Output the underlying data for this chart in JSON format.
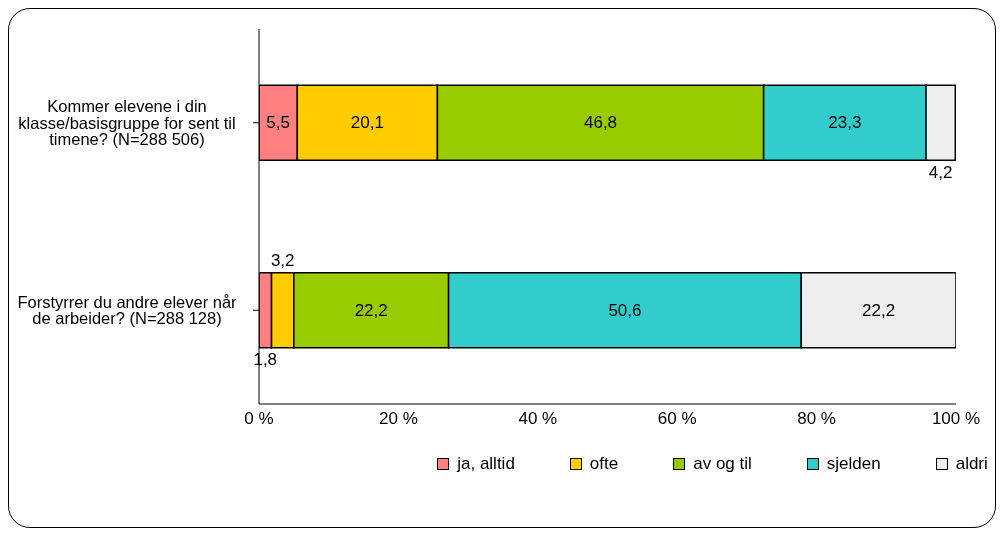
{
  "chart_data": {
    "type": "bar",
    "orientation": "horizontal",
    "stacked": true,
    "categories": [
      "Kommer elevene i din klasse/basisgruppe for sent til timene? (N=288 506)",
      "Forstyrrer du andre elever når de arbeider? (N=288 128)"
    ],
    "series": [
      {
        "name": "ja, alltid",
        "color": "#ff8080",
        "values": [
          5.5,
          1.8
        ],
        "value_labels": [
          "5,5",
          "1,8"
        ]
      },
      {
        "name": "ofte",
        "color": "#ffcc00",
        "values": [
          20.1,
          3.2
        ],
        "value_labels": [
          "20,1",
          "3,2"
        ]
      },
      {
        "name": "av og til",
        "color": "#99cc00",
        "values": [
          46.8,
          22.2
        ],
        "value_labels": [
          "46,8",
          "22,2"
        ]
      },
      {
        "name": "sjelden",
        "color": "#33cccc",
        "values": [
          23.3,
          50.6
        ],
        "value_labels": [
          "23,3",
          "50,6"
        ]
      },
      {
        "name": "aldri",
        "color": "#eeeeee",
        "values": [
          4.2,
          22.2
        ],
        "value_labels": [
          "4,2",
          "22,2"
        ]
      }
    ],
    "xlim": [
      0,
      100
    ],
    "xticks": [
      {
        "value": 0,
        "label": "0 %"
      },
      {
        "value": 20,
        "label": "20 %"
      },
      {
        "value": 40,
        "label": "40 %"
      },
      {
        "value": 60,
        "label": "60 %"
      },
      {
        "value": 80,
        "label": "80 %"
      },
      {
        "value": 100,
        "label": "100 %"
      }
    ],
    "grid": false,
    "legend": "bottom"
  }
}
